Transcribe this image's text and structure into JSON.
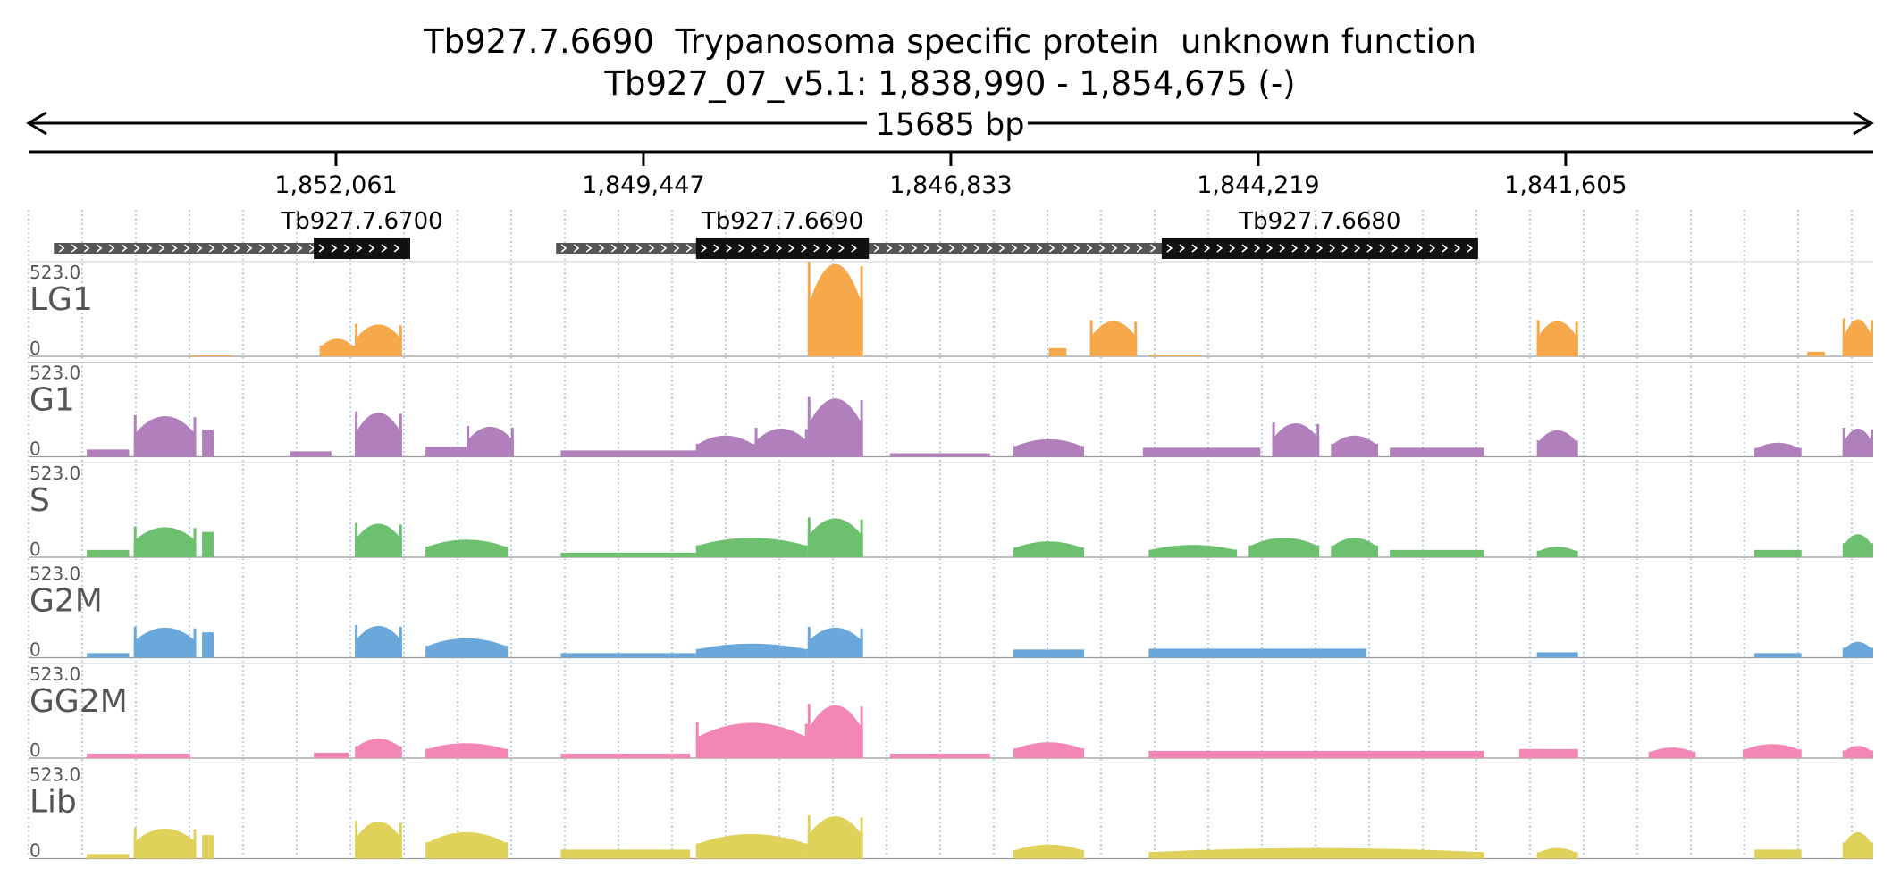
{
  "header": {
    "title": "Tb927.7.6690  Trypanosoma specific protein  unknown function",
    "location": "Tb927_07_v5.1: 1,838,990 - 1,854,675 (-)",
    "span_label": "15685 bp"
  },
  "colors": {
    "LG1": "#f7a84a",
    "G1": "#b07fbc",
    "S": "#6cc06e",
    "G2M": "#6aa8dc",
    "GG2M": "#f386b5",
    "Lib": "#dfd15a",
    "gridline": "#7fb0e0",
    "gene": "#111111",
    "utr": "#555555"
  },
  "chart_data": {
    "type": "area",
    "title": "Tb927.7.6690  Trypanosoma specific protein  unknown function",
    "subtitle": "Tb927_07_v5.1: 1,838,990 - 1,854,675 (-)",
    "strand": "-",
    "xrange": [
      1854675,
      1838990
    ],
    "span_bp": 15685,
    "xticks": [
      1852061,
      1849447,
      1846833,
      1844219,
      1841605
    ],
    "xtick_labels": [
      "1,852,061",
      "1,849,447",
      "1,846,833",
      "1,844,219",
      "1,841,605"
    ],
    "genes": [
      {
        "name": "Tb927.7.6700",
        "start": 1852250,
        "end": 1851430,
        "utr_start": 1854460,
        "utr_end": 1851690
      },
      {
        "name": "Tb927.7.6690",
        "start": 1849000,
        "end": 1847530,
        "utr_start": 1850190,
        "utr_end": 1845060
      },
      {
        "name": "Tb927.7.6680",
        "start": 1845040,
        "end": 1842350,
        "utr_start": 1845180,
        "utr_end": 1842350
      }
    ],
    "ymax_label": "523.0",
    "ymin_label": "0",
    "ylim": [
      0,
      523
    ],
    "series": [
      {
        "name": "LG1",
        "peaks": [
          {
            "x1": 1853300,
            "x2": 1852950,
            "y": 6
          },
          {
            "x1": 1852200,
            "x2": 1851900,
            "y": 100
          },
          {
            "x1": 1851900,
            "x2": 1851500,
            "y": 180
          },
          {
            "x1": 1848050,
            "x2": 1847580,
            "y": 523
          },
          {
            "x1": 1846000,
            "x2": 1845850,
            "y": 45
          },
          {
            "x1": 1845650,
            "x2": 1845250,
            "y": 200
          },
          {
            "x1": 1845150,
            "x2": 1844700,
            "y": 8
          },
          {
            "x1": 1841850,
            "x2": 1841500,
            "y": 200
          },
          {
            "x1": 1839550,
            "x2": 1839400,
            "y": 25
          },
          {
            "x1": 1839250,
            "x2": 1838990,
            "y": 210
          }
        ]
      },
      {
        "name": "G1",
        "peaks": [
          {
            "x1": 1854180,
            "x2": 1853820,
            "y": 40
          },
          {
            "x1": 1853780,
            "x2": 1853250,
            "y": 230
          },
          {
            "x1": 1853200,
            "x2": 1853100,
            "y": 150
          },
          {
            "x1": 1852450,
            "x2": 1852100,
            "y": 30
          },
          {
            "x1": 1851900,
            "x2": 1851500,
            "y": 250
          },
          {
            "x1": 1851300,
            "x2": 1850950,
            "y": 55
          },
          {
            "x1": 1850950,
            "x2": 1850550,
            "y": 170
          },
          {
            "x1": 1850150,
            "x2": 1848200,
            "y": 35
          },
          {
            "x1": 1849000,
            "x2": 1848500,
            "y": 120
          },
          {
            "x1": 1848500,
            "x2": 1848050,
            "y": 160
          },
          {
            "x1": 1848050,
            "x2": 1847580,
            "y": 330
          },
          {
            "x1": 1847350,
            "x2": 1846500,
            "y": 20
          },
          {
            "x1": 1846300,
            "x2": 1845700,
            "y": 100
          },
          {
            "x1": 1845200,
            "x2": 1844200,
            "y": 50
          },
          {
            "x1": 1844100,
            "x2": 1843700,
            "y": 190
          },
          {
            "x1": 1843600,
            "x2": 1843200,
            "y": 120
          },
          {
            "x1": 1843100,
            "x2": 1842300,
            "y": 50
          },
          {
            "x1": 1841850,
            "x2": 1841500,
            "y": 150
          },
          {
            "x1": 1840000,
            "x2": 1839600,
            "y": 80
          },
          {
            "x1": 1839250,
            "x2": 1838990,
            "y": 160
          }
        ]
      },
      {
        "name": "S",
        "peaks": [
          {
            "x1": 1854180,
            "x2": 1853820,
            "y": 40
          },
          {
            "x1": 1853780,
            "x2": 1853250,
            "y": 170
          },
          {
            "x1": 1853200,
            "x2": 1853100,
            "y": 140
          },
          {
            "x1": 1851900,
            "x2": 1851500,
            "y": 190
          },
          {
            "x1": 1851300,
            "x2": 1850600,
            "y": 100
          },
          {
            "x1": 1850150,
            "x2": 1849000,
            "y": 25
          },
          {
            "x1": 1849000,
            "x2": 1848050,
            "y": 110
          },
          {
            "x1": 1848050,
            "x2": 1847580,
            "y": 220
          },
          {
            "x1": 1846300,
            "x2": 1845700,
            "y": 90
          },
          {
            "x1": 1845150,
            "x2": 1844400,
            "y": 70
          },
          {
            "x1": 1844300,
            "x2": 1843700,
            "y": 110
          },
          {
            "x1": 1843600,
            "x2": 1843200,
            "y": 110
          },
          {
            "x1": 1843100,
            "x2": 1842300,
            "y": 40
          },
          {
            "x1": 1841850,
            "x2": 1841500,
            "y": 60
          },
          {
            "x1": 1840000,
            "x2": 1839600,
            "y": 40
          },
          {
            "x1": 1839250,
            "x2": 1838990,
            "y": 130
          }
        ]
      },
      {
        "name": "G2M",
        "peaks": [
          {
            "x1": 1854180,
            "x2": 1853820,
            "y": 25
          },
          {
            "x1": 1853780,
            "x2": 1853250,
            "y": 170
          },
          {
            "x1": 1853200,
            "x2": 1853100,
            "y": 140
          },
          {
            "x1": 1851900,
            "x2": 1851500,
            "y": 180
          },
          {
            "x1": 1851300,
            "x2": 1850600,
            "y": 110
          },
          {
            "x1": 1850150,
            "x2": 1849000,
            "y": 25
          },
          {
            "x1": 1849000,
            "x2": 1848050,
            "y": 80
          },
          {
            "x1": 1848050,
            "x2": 1847580,
            "y": 170
          },
          {
            "x1": 1846300,
            "x2": 1845700,
            "y": 45
          },
          {
            "x1": 1845150,
            "x2": 1843300,
            "y": 50
          },
          {
            "x1": 1841850,
            "x2": 1841500,
            "y": 30
          },
          {
            "x1": 1840000,
            "x2": 1839600,
            "y": 25
          },
          {
            "x1": 1839250,
            "x2": 1838990,
            "y": 90
          }
        ]
      },
      {
        "name": "GG2M",
        "peaks": [
          {
            "x1": 1854180,
            "x2": 1853300,
            "y": 25
          },
          {
            "x1": 1852250,
            "x2": 1851950,
            "y": 30
          },
          {
            "x1": 1851900,
            "x2": 1851500,
            "y": 110
          },
          {
            "x1": 1851300,
            "x2": 1850600,
            "y": 85
          },
          {
            "x1": 1850150,
            "x2": 1849050,
            "y": 25
          },
          {
            "x1": 1849000,
            "x2": 1848050,
            "y": 200
          },
          {
            "x1": 1848050,
            "x2": 1847580,
            "y": 300
          },
          {
            "x1": 1847350,
            "x2": 1846500,
            "y": 25
          },
          {
            "x1": 1846300,
            "x2": 1845700,
            "y": 90
          },
          {
            "x1": 1845150,
            "x2": 1842300,
            "y": 40
          },
          {
            "x1": 1842000,
            "x2": 1841500,
            "y": 50
          },
          {
            "x1": 1840900,
            "x2": 1840500,
            "y": 60
          },
          {
            "x1": 1840100,
            "x2": 1839600,
            "y": 80
          },
          {
            "x1": 1839250,
            "x2": 1838990,
            "y": 70
          }
        ]
      },
      {
        "name": "Lib",
        "peaks": [
          {
            "x1": 1854180,
            "x2": 1853820,
            "y": 25
          },
          {
            "x1": 1853780,
            "x2": 1853250,
            "y": 170
          },
          {
            "x1": 1853200,
            "x2": 1853100,
            "y": 130
          },
          {
            "x1": 1851900,
            "x2": 1851500,
            "y": 210
          },
          {
            "x1": 1851300,
            "x2": 1850600,
            "y": 150
          },
          {
            "x1": 1850150,
            "x2": 1849050,
            "y": 50
          },
          {
            "x1": 1849000,
            "x2": 1848050,
            "y": 140
          },
          {
            "x1": 1848050,
            "x2": 1847580,
            "y": 240
          },
          {
            "x1": 1846300,
            "x2": 1845700,
            "y": 80
          },
          {
            "x1": 1845150,
            "x2": 1842300,
            "y": 60
          },
          {
            "x1": 1841850,
            "x2": 1841500,
            "y": 60
          },
          {
            "x1": 1840000,
            "x2": 1839600,
            "y": 50
          },
          {
            "x1": 1839250,
            "x2": 1838990,
            "y": 150
          }
        ]
      }
    ]
  }
}
